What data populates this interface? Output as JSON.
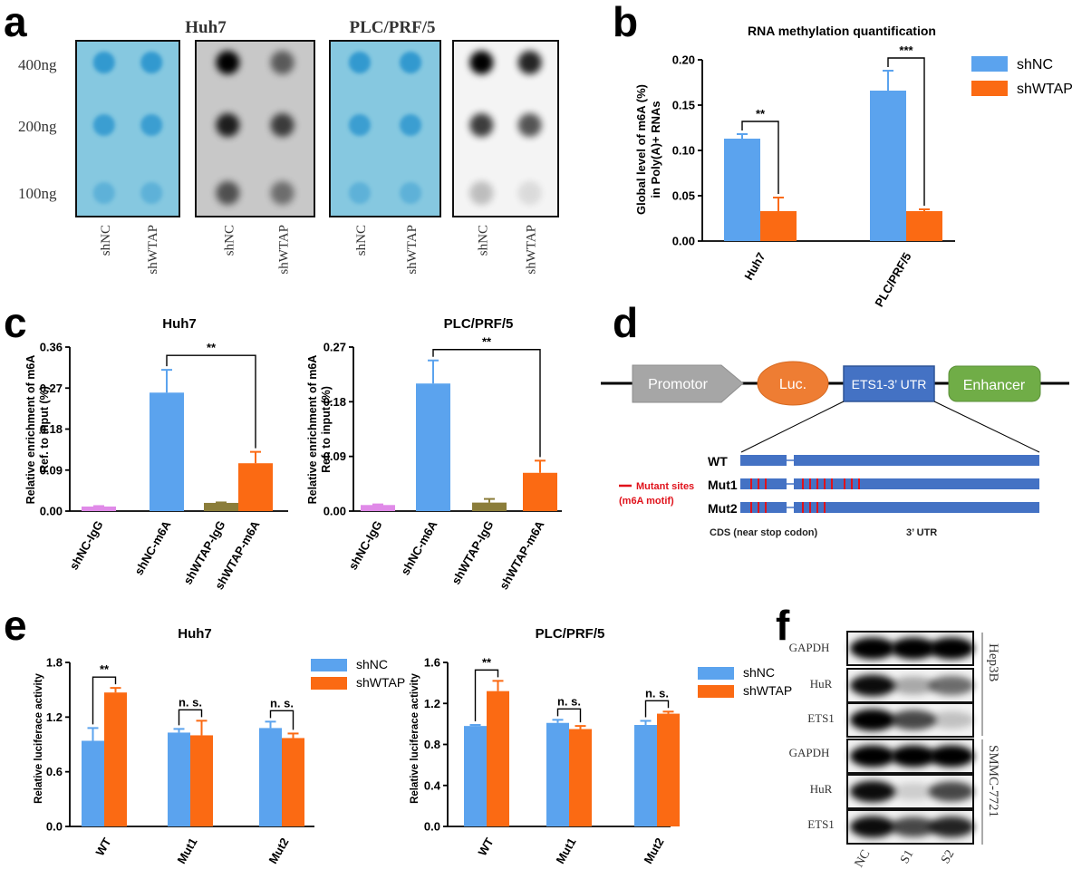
{
  "colors": {
    "blue": "#5ba3ee",
    "orange": "#fb6a13",
    "violet": "#e08ae8",
    "olive": "#8b7d3a",
    "dot_bg": "#86c8e0",
    "dot": "#2d97cf"
  },
  "panels": {
    "a": "a",
    "b": "b",
    "c": "c",
    "d": "d",
    "e": "e",
    "f": "f"
  },
  "panel_a": {
    "blots": [
      {
        "title": "Huh7",
        "type": "methylene-blue",
        "lanes": [
          "shNC",
          "shWTAP"
        ]
      },
      {
        "title": "",
        "type": "dot-blot-dark",
        "lanes": [
          "shNC",
          "shWTAP"
        ]
      },
      {
        "title": "PLC/PRF/5",
        "type": "methylene-blue",
        "lanes": [
          "shNC",
          "shWTAP"
        ]
      },
      {
        "title": "",
        "type": "dot-blot-light",
        "lanes": [
          "shNC",
          "shWTAP"
        ]
      }
    ],
    "row_labels": [
      "400ng",
      "200ng",
      "100ng"
    ]
  },
  "chart_data": [
    {
      "id": "b",
      "type": "bar",
      "title": "RNA methylation quantification",
      "ylabel_lines": [
        "Global level of m6A (%)",
        "in Poly(A)+ RNAs"
      ],
      "categories": [
        "Huh7",
        "PLC/PRF/5"
      ],
      "series": [
        {
          "name": "shNC",
          "color": "#5ba3ee",
          "values": [
            0.113,
            0.166
          ],
          "errors": [
            0.005,
            0.022
          ]
        },
        {
          "name": "shWTAP",
          "color": "#fb6a13",
          "values": [
            0.033,
            0.033
          ],
          "errors": [
            0.015,
            0.002
          ]
        }
      ],
      "ylim": [
        0,
        0.2
      ],
      "yticks": [
        "0.00",
        "0.05",
        "0.10",
        "0.15",
        "0.20"
      ],
      "significance": [
        {
          "category": "Huh7",
          "label": "**"
        },
        {
          "category": "PLC/PRF/5",
          "label": "***"
        }
      ],
      "legend": "top-right"
    },
    {
      "id": "c1",
      "type": "bar",
      "title": "Huh7",
      "ylabel_lines": [
        "Relative enrichment of m6A",
        "Ref. to input (%)"
      ],
      "categories": [
        "shNC-IgG",
        "shNC-m6A",
        "shWTAP-IgG",
        "shWTAP-m6A"
      ],
      "values": [
        0.01,
        0.26,
        0.018,
        0.105
      ],
      "errors": [
        0.001,
        0.05,
        0.001,
        0.025
      ],
      "colors": [
        "#e08ae8",
        "#5ba3ee",
        "#8b7d3a",
        "#fb6a13"
      ],
      "ylim": [
        0,
        0.36
      ],
      "yticks": [
        "0.00",
        "0.09",
        "0.18",
        "0.27",
        "0.36"
      ],
      "significance": [
        {
          "from": "shNC-m6A",
          "to": "shWTAP-m6A",
          "label": "**"
        }
      ]
    },
    {
      "id": "c2",
      "type": "bar",
      "title": "PLC/PRF/5",
      "ylabel_lines": [
        "Relative enrichment of m6A",
        "Ref. to input (%)"
      ],
      "categories": [
        "shNC-IgG",
        "shNC-m6A",
        "shWTAP-IgG",
        "shWTAP-m6A"
      ],
      "values": [
        0.01,
        0.21,
        0.014,
        0.063
      ],
      "errors": [
        0.001,
        0.038,
        0.006,
        0.02
      ],
      "colors": [
        "#e08ae8",
        "#5ba3ee",
        "#8b7d3a",
        "#fb6a13"
      ],
      "ylim": [
        0,
        0.27
      ],
      "yticks": [
        "0.00",
        "0.09",
        "0.18",
        "0.27"
      ],
      "significance": [
        {
          "from": "shNC-m6A",
          "to": "shWTAP-m6A",
          "label": "**"
        }
      ]
    },
    {
      "id": "e1",
      "type": "bar",
      "title": "Huh7",
      "ylabel": "Relative luciferace activity",
      "categories": [
        "WT",
        "Mut1",
        "Mut2"
      ],
      "series": [
        {
          "name": "shNC",
          "color": "#5ba3ee",
          "values": [
            0.94,
            1.03,
            1.08
          ],
          "errors": [
            0.14,
            0.04,
            0.07
          ]
        },
        {
          "name": "shWTAP",
          "color": "#fb6a13",
          "values": [
            1.47,
            1.0,
            0.97
          ],
          "errors": [
            0.05,
            0.16,
            0.05
          ]
        }
      ],
      "ylim": [
        0,
        1.8
      ],
      "yticks": [
        "0.0",
        "0.6",
        "1.2",
        "1.8"
      ],
      "significance": [
        {
          "category": "WT",
          "label": "**"
        },
        {
          "category": "Mut1",
          "label": "n. s."
        },
        {
          "category": "Mut2",
          "label": "n. s."
        }
      ],
      "legend": "top-right"
    },
    {
      "id": "e2",
      "type": "bar",
      "title": "PLC/PRF/5",
      "ylabel": "Relative luciferace activity",
      "categories": [
        "WT",
        "Mut1",
        "Mut2"
      ],
      "series": [
        {
          "name": "shNC",
          "color": "#5ba3ee",
          "values": [
            0.98,
            1.01,
            0.99
          ],
          "errors": [
            0.01,
            0.03,
            0.04
          ]
        },
        {
          "name": "shWTAP",
          "color": "#fb6a13",
          "values": [
            1.32,
            0.95,
            1.1
          ],
          "errors": [
            0.1,
            0.03,
            0.02
          ]
        }
      ],
      "ylim": [
        0,
        1.6
      ],
      "yticks": [
        "0.0",
        "0.4",
        "0.8",
        "1.2",
        "1.6"
      ],
      "significance": [
        {
          "category": "WT",
          "label": "**"
        },
        {
          "category": "Mut1",
          "label": "n. s."
        },
        {
          "category": "Mut2",
          "label": "n. s."
        }
      ],
      "legend": "top-right"
    }
  ],
  "panel_d": {
    "elements": [
      "Promotor",
      "Luc.",
      "ETS1-3’ UTR",
      "Enhancer"
    ],
    "constructs": [
      {
        "name": "WT",
        "sites_cds": 0,
        "sites_utr": 0
      },
      {
        "name": "Mut1",
        "sites_cds": 3,
        "sites_utr": 8
      },
      {
        "name": "Mut2",
        "sites_cds": 3,
        "sites_utr": 4
      }
    ],
    "legend_lines": [
      "Mutant sites",
      "(m6A motif)"
    ],
    "region_labels": [
      "CDS (near stop codon)",
      "3’ UTR"
    ]
  },
  "panel_f": {
    "groups": [
      {
        "cell_line": "Hep3B",
        "rows": [
          "GAPDH",
          "HuR",
          "ETS1"
        ]
      },
      {
        "cell_line": "SMMC-7721",
        "rows": [
          "GAPDH",
          "HuR",
          "ETS1"
        ]
      }
    ],
    "lanes": [
      "NC",
      "S1",
      "S2"
    ]
  }
}
